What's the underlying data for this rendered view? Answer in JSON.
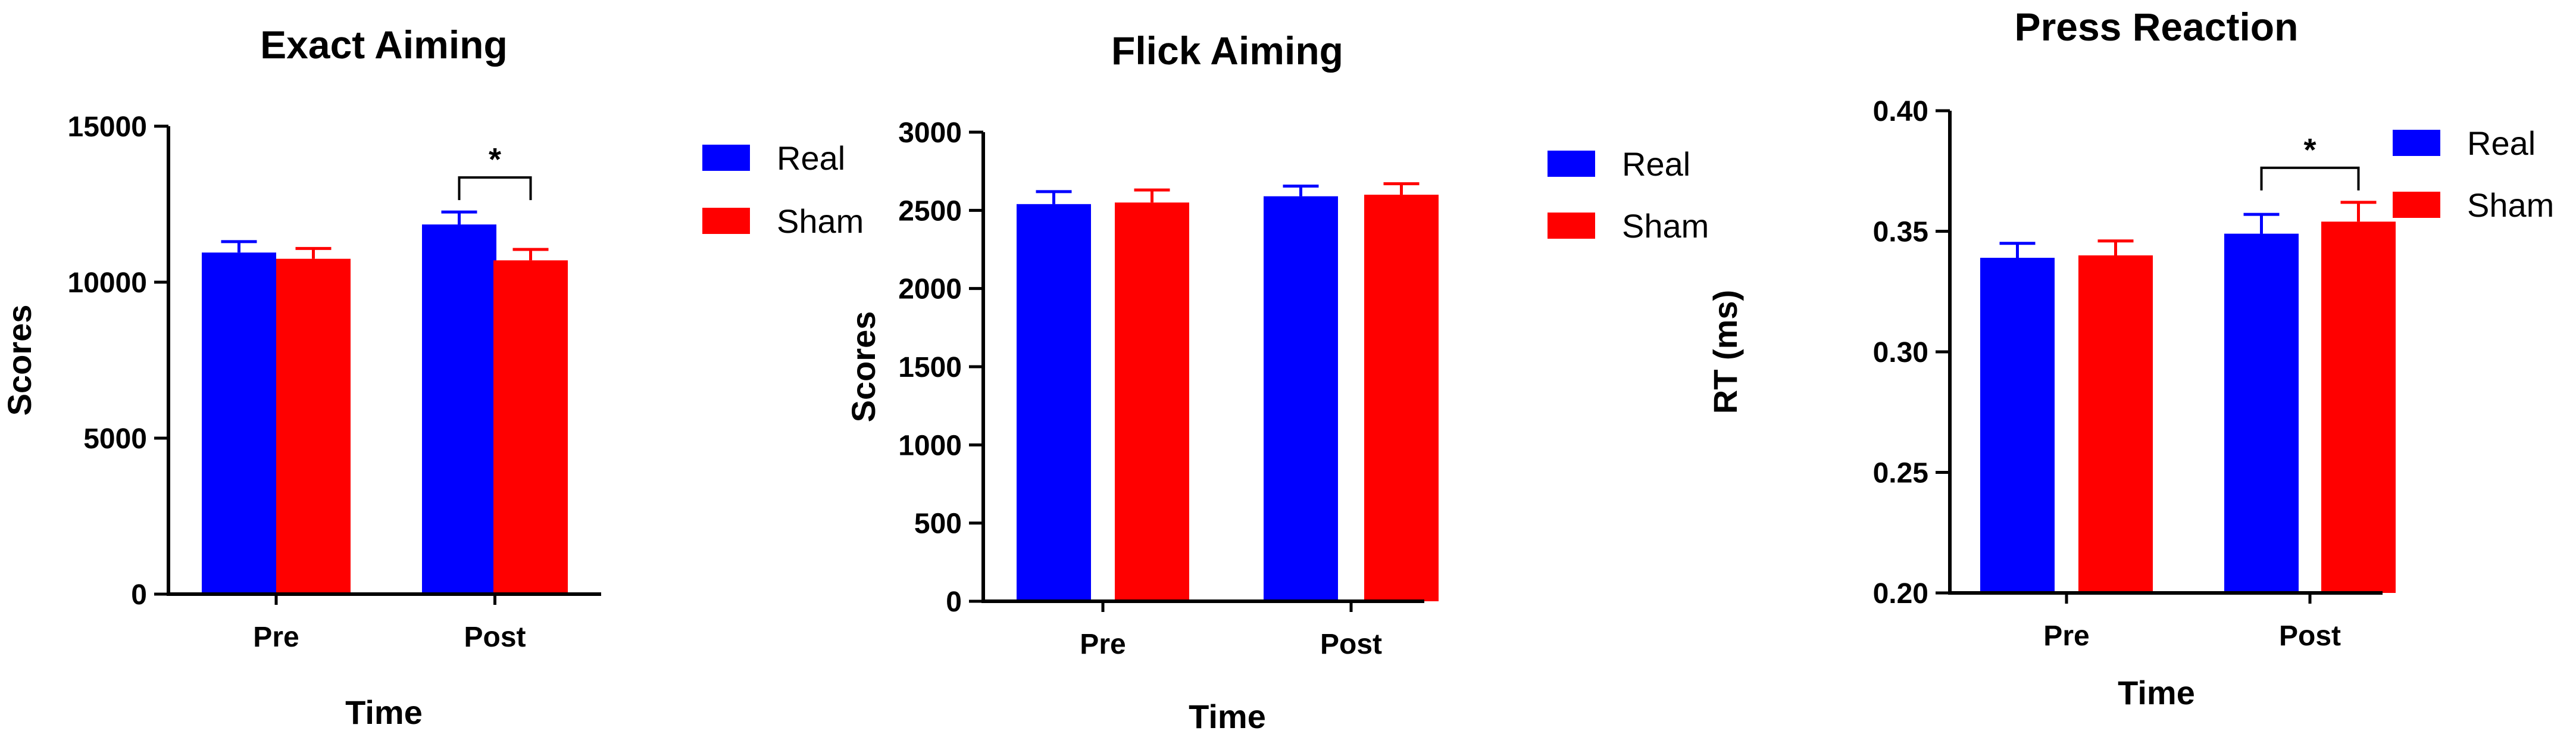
{
  "colors": {
    "real": "#0000ff",
    "sham": "#ff0000",
    "axis": "#000000"
  },
  "chart_data": [
    {
      "type": "bar",
      "title": "Exact Aiming",
      "xlabel": "Time",
      "ylabel": "Scores",
      "ylim": [
        0,
        15000
      ],
      "yticks": [
        0,
        5000,
        10000,
        15000
      ],
      "ytick_labels": [
        "0",
        "5000",
        "10000",
        "15000"
      ],
      "categories": [
        "Pre",
        "Post"
      ],
      "series": [
        {
          "name": "Real",
          "color": "#0000ff",
          "values": [
            10950,
            11850
          ],
          "errors": [
            350,
            400
          ]
        },
        {
          "name": "Sham",
          "color": "#ff0000",
          "values": [
            10750,
            10700
          ],
          "errors": [
            330,
            350
          ]
        }
      ],
      "legend": {
        "placement": "right",
        "entries": [
          "Real",
          "Sham"
        ]
      },
      "significance": [
        {
          "category": "Post",
          "label": "*"
        }
      ],
      "grid": false
    },
    {
      "type": "bar",
      "title": "Flick Aiming",
      "xlabel": "Time",
      "ylabel": "Scores",
      "ylim": [
        0,
        3000
      ],
      "yticks": [
        0,
        500,
        1000,
        1500,
        2000,
        2500,
        3000
      ],
      "ytick_labels": [
        "0",
        "500",
        "1000",
        "1500",
        "2000",
        "2500",
        "3000"
      ],
      "categories": [
        "Pre",
        "Post"
      ],
      "series": [
        {
          "name": "Real",
          "color": "#0000ff",
          "values": [
            2540,
            2590
          ],
          "errors": [
            80,
            65
          ]
        },
        {
          "name": "Sham",
          "color": "#ff0000",
          "values": [
            2550,
            2600
          ],
          "errors": [
            80,
            70
          ]
        }
      ],
      "legend": {
        "placement": "right",
        "entries": [
          "Real",
          "Sham"
        ]
      },
      "significance": [],
      "grid": false
    },
    {
      "type": "bar",
      "title": "Press Reaction",
      "xlabel": "Time",
      "ylabel": "RT (ms)",
      "ylim": [
        0.2,
        0.4
      ],
      "yticks": [
        0.2,
        0.25,
        0.3,
        0.35,
        0.4
      ],
      "ytick_labels": [
        "0.20",
        "0.25",
        "0.30",
        "0.35",
        "0.40"
      ],
      "categories": [
        "Pre",
        "Post"
      ],
      "series": [
        {
          "name": "Real",
          "color": "#0000ff",
          "values": [
            0.339,
            0.349
          ],
          "errors": [
            0.006,
            0.008
          ]
        },
        {
          "name": "Sham",
          "color": "#ff0000",
          "values": [
            0.34,
            0.354
          ],
          "errors": [
            0.006,
            0.008
          ]
        }
      ],
      "legend": {
        "placement": "right",
        "entries": [
          "Real",
          "Sham"
        ]
      },
      "significance": [
        {
          "category": "Post",
          "label": "*"
        }
      ],
      "grid": false
    }
  ]
}
